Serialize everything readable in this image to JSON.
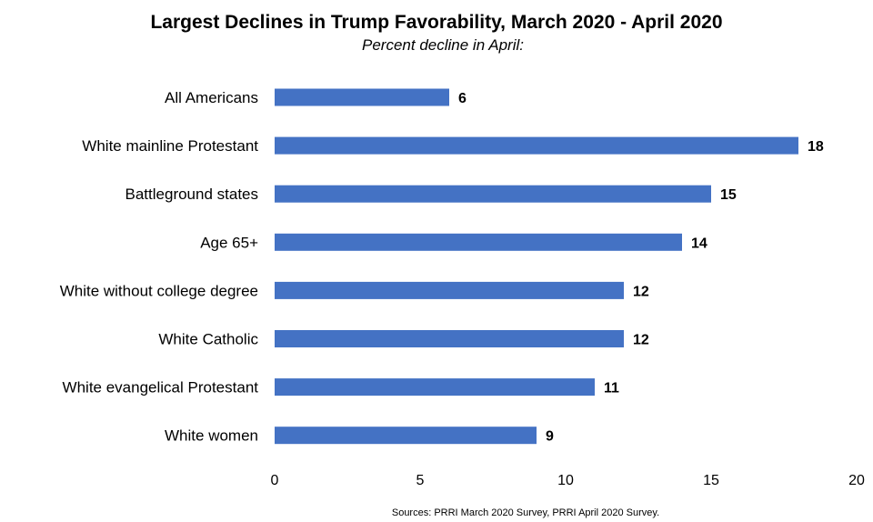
{
  "chart_data": {
    "type": "bar",
    "orientation": "horizontal",
    "title": "Largest Declines in Trump Favorability, March 2020 - April 2020",
    "subtitle": "Percent decline in April:",
    "categories": [
      "All Americans",
      "White mainline Protestant",
      "Battleground states",
      "Age 65+",
      "White without college degree",
      "White Catholic",
      "White evangelical Protestant",
      "White women"
    ],
    "values": [
      6,
      18,
      15,
      14,
      12,
      12,
      11,
      9
    ],
    "xlim": [
      0,
      20
    ],
    "xticks": [
      0,
      5,
      10,
      15,
      20
    ],
    "xlabel": "",
    "ylabel": "",
    "grid": false,
    "legend": "none",
    "bar_color": "#4472C4",
    "source": "Sources: PRRI March 2020 Survey, PRRI April 2020 Survey."
  }
}
